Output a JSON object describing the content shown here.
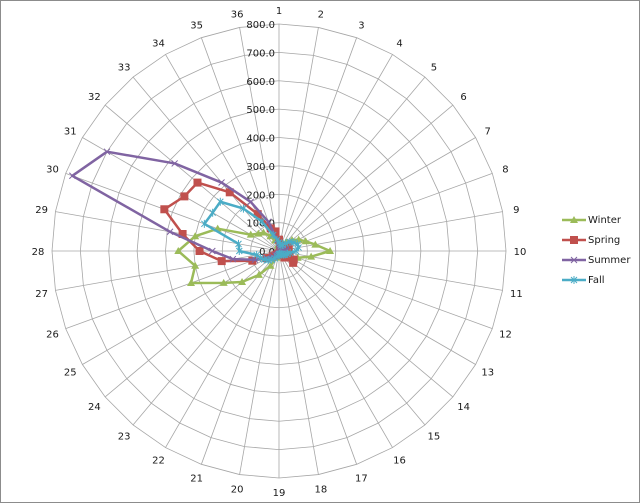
{
  "chart_data": {
    "type": "radar",
    "title": "",
    "categories": [
      "1",
      "2",
      "3",
      "4",
      "5",
      "6",
      "7",
      "8",
      "9",
      "10",
      "11",
      "12",
      "13",
      "14",
      "15",
      "16",
      "17",
      "18",
      "19",
      "20",
      "21",
      "22",
      "23",
      "24",
      "25",
      "26",
      "27",
      "28",
      "29",
      "30",
      "31",
      "32",
      "33",
      "34",
      "35",
      "36"
    ],
    "radial_axis": {
      "min": 0,
      "max": 800,
      "step": 100,
      "tick_labels": [
        "0.0",
        "100.0",
        "200.0",
        "300.0",
        "400.0",
        "500.0",
        "600.0",
        "700.0",
        "800.0"
      ]
    },
    "grid": true,
    "legend_position": "right",
    "series": [
      {
        "name": "Winter",
        "color": "#9bbb59",
        "marker": "triangle",
        "values": [
          15,
          20,
          25,
          30,
          40,
          60,
          80,
          100,
          130,
          180,
          115,
          70,
          40,
          25,
          15,
          10,
          10,
          10,
          10,
          15,
          25,
          60,
          110,
          170,
          225,
          330,
          300,
          355,
          300,
          230,
          115,
          95,
          85,
          60,
          40,
          20
        ]
      },
      {
        "name": "Spring",
        "color": "#c0504d",
        "marker": "square",
        "values": [
          40,
          20,
          15,
          15,
          20,
          25,
          30,
          35,
          35,
          30,
          25,
          40,
          60,
          65,
          30,
          15,
          10,
          10,
          10,
          10,
          10,
          15,
          20,
          30,
          50,
          100,
          205,
          280,
          345,
          430,
          385,
          375,
          270,
          150,
          85,
          70
        ]
      },
      {
        "name": "Summer",
        "color": "#8064a2",
        "marker": "x",
        "values": [
          20,
          15,
          10,
          10,
          10,
          10,
          15,
          20,
          25,
          25,
          20,
          20,
          20,
          15,
          10,
          10,
          10,
          10,
          10,
          10,
          10,
          15,
          20,
          30,
          50,
          90,
          165,
          235,
          390,
          775,
          700,
          480,
          315,
          200,
          110,
          40
        ]
      },
      {
        "name": "Fall",
        "color": "#4bacc6",
        "marker": "star",
        "values": [
          30,
          25,
          20,
          25,
          35,
          50,
          60,
          70,
          70,
          60,
          40,
          30,
          25,
          20,
          15,
          15,
          10,
          10,
          10,
          15,
          20,
          30,
          40,
          50,
          60,
          70,
          80,
          140,
          145,
          280,
          270,
          270,
          195,
          120,
          60,
          40
        ]
      }
    ]
  },
  "legend": {
    "items": [
      {
        "label": "Winter",
        "color": "#9bbb59"
      },
      {
        "label": "Spring",
        "color": "#c0504d"
      },
      {
        "label": "Summer",
        "color": "#8064a2"
      },
      {
        "label": "Fall",
        "color": "#4bacc6"
      }
    ]
  }
}
